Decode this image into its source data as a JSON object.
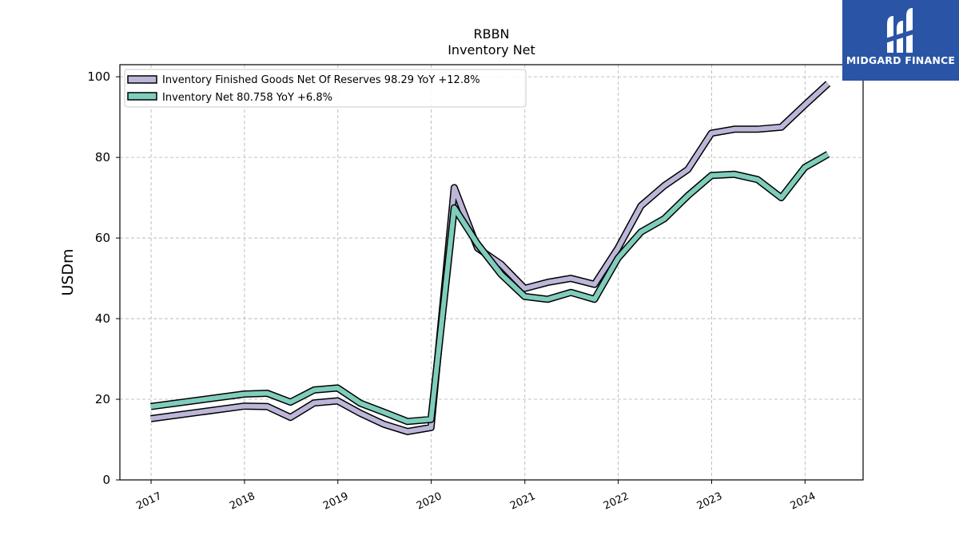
{
  "chart_data": {
    "type": "line",
    "title": "RBBN",
    "subtitle": "Inventory Net",
    "ylabel": "USDm",
    "ylim": [
      0,
      103
    ],
    "yticks": [
      0,
      20,
      40,
      60,
      80,
      100
    ],
    "xticks": [
      "2017",
      "2018",
      "2019",
      "2020",
      "2021",
      "2022",
      "2023",
      "2024"
    ],
    "grid": true,
    "legend_position": "top-left",
    "x": [
      "2016-12-31",
      "2017-12-31",
      "2018-03-31",
      "2018-06-30",
      "2018-09-30",
      "2018-12-31",
      "2019-03-31",
      "2019-06-30",
      "2019-09-30",
      "2019-12-31",
      "2020-03-31",
      "2020-06-30",
      "2020-09-30",
      "2020-12-31",
      "2021-03-31",
      "2021-06-30",
      "2021-09-30",
      "2021-12-31",
      "2022-03-31",
      "2022-06-30",
      "2022-09-30",
      "2022-12-31",
      "2023-03-31",
      "2023-06-30",
      "2023-09-30",
      "2023-12-31",
      "2024-03-31"
    ],
    "series": [
      {
        "name": "Inventory Finished Goods Net Of Reserves",
        "legend": "Inventory Finished Goods Net Of Reserves  98.29 YoY +12.8%",
        "color": "#bcb6d9",
        "values": [
          15.2,
          18.3,
          18.2,
          15.5,
          19.1,
          19.6,
          16.5,
          13.8,
          12.0,
          13.0,
          72.5,
          57.5,
          53.5,
          47.5,
          49.0,
          50.0,
          48.5,
          57.5,
          68.0,
          73.0,
          77.0,
          86.0,
          87.0,
          87.0,
          87.5,
          93.0,
          98.3
        ]
      },
      {
        "name": "Inventory Net",
        "legend": "Inventory Net  80.758 YoY +6.8%",
        "color": "#7fcdbb",
        "values": [
          18.2,
          21.3,
          21.5,
          19.3,
          22.3,
          22.8,
          19.0,
          16.8,
          14.5,
          15.0,
          67.5,
          58.5,
          51.0,
          45.5,
          44.8,
          46.5,
          44.8,
          55.0,
          61.5,
          64.8,
          70.5,
          75.5,
          75.8,
          74.5,
          70.0,
          77.5,
          80.8
        ]
      }
    ]
  },
  "logo": {
    "text": "MIDGARD FINANCE",
    "icon": "midgard-logo-icon"
  }
}
